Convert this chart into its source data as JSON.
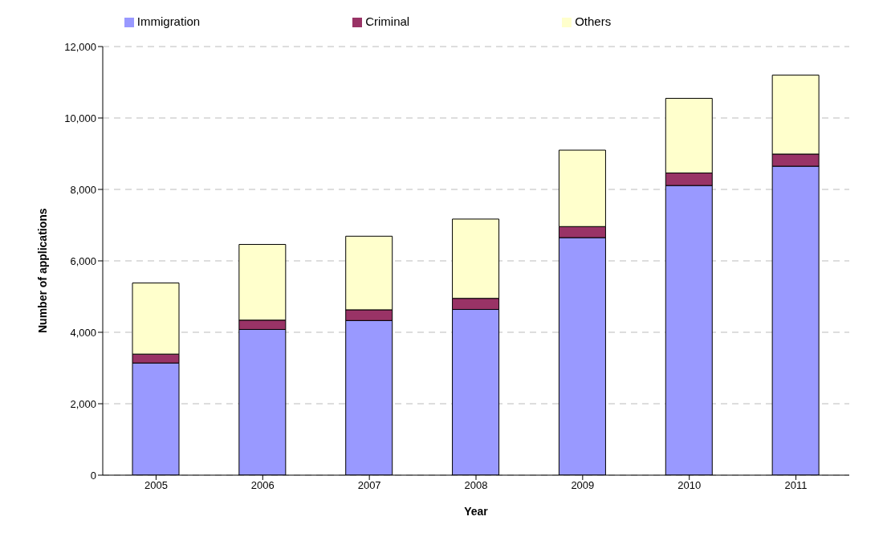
{
  "chart_data": {
    "type": "bar",
    "stacked": true,
    "xlabel": "Year",
    "ylabel": "Number of applications",
    "categories": [
      "2005",
      "2006",
      "2007",
      "2008",
      "2009",
      "2010",
      "2011"
    ],
    "series": [
      {
        "name": "Immigration",
        "color": "#9999ff",
        "values": [
          3140,
          4080,
          4330,
          4640,
          6650,
          8110,
          8650
        ]
      },
      {
        "name": "Criminal",
        "color": "#993366",
        "values": [
          250,
          260,
          300,
          310,
          310,
          350,
          340
        ]
      },
      {
        "name": "Others",
        "color": "#ffffcc",
        "values": [
          1990,
          2120,
          2060,
          2220,
          2140,
          2090,
          2210
        ]
      }
    ],
    "ylim": [
      0,
      12000
    ],
    "yticks": [
      {
        "value": 0,
        "label": "0"
      },
      {
        "value": 2000,
        "label": "2,000"
      },
      {
        "value": 4000,
        "label": "4,000"
      },
      {
        "value": 6000,
        "label": "6,000"
      },
      {
        "value": 8000,
        "label": "8,000"
      },
      {
        "value": 10000,
        "label": "10,000"
      },
      {
        "value": 12000,
        "label": "12,000"
      }
    ],
    "grid": "y",
    "legend": "top"
  }
}
